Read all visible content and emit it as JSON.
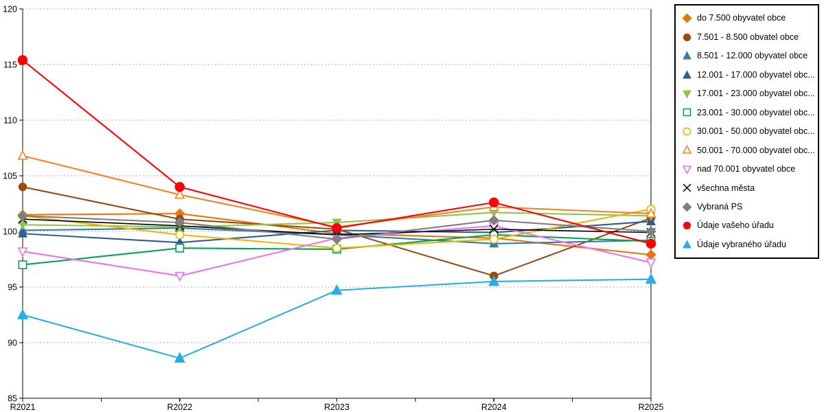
{
  "chart_data": {
    "type": "line",
    "title": "",
    "xlabel": "",
    "ylabel": "",
    "x_categories": [
      "R2021",
      "R2022",
      "R2023",
      "R2024",
      "R2025"
    ],
    "ylim": [
      85,
      120
    ],
    "ytick_step": 5,
    "grid": "horizontal-dashed",
    "grid_color": "#ababab",
    "axis_color": "#000000",
    "legend_position": "right",
    "series": [
      {
        "name": "do 7.500 obyvatel obce",
        "color": "#e8740c",
        "marker": "diamond",
        "fill": "solid",
        "values": [
          101.5,
          101.6,
          99.8,
          99.4,
          97.9
        ]
      },
      {
        "name": "7.501 - 8.500 obvatel obce",
        "color": "#9a4b0f",
        "marker": "circle",
        "fill": "solid",
        "values": [
          104.0,
          101.1,
          100.2,
          96.0,
          101.2
        ]
      },
      {
        "name": "8.501 - 12.000 obyvatel obce",
        "color": "#347ea4",
        "marker": "triangle-up",
        "fill": "solid",
        "values": [
          100.1,
          100.3,
          99.7,
          98.9,
          99.2
        ]
      },
      {
        "name": "12.001 - 17.000 obyvatel obc...",
        "color": "#2c5f8f",
        "marker": "triangle-up",
        "fill": "solid",
        "values": [
          99.8,
          99.0,
          100.1,
          99.9,
          100.9
        ]
      },
      {
        "name": "17.001 - 23.000 obyvatel obc...",
        "color": "#8ec549",
        "marker": "triangle-down",
        "fill": "solid",
        "values": [
          100.6,
          100.4,
          100.8,
          101.7,
          101.4
        ]
      },
      {
        "name": "23.001 - 30.000 obyvatel obc...",
        "color": "#00a550",
        "marker": "square",
        "fill": "hollow",
        "values": [
          97.0,
          98.5,
          98.4,
          99.7,
          99.1
        ]
      },
      {
        "name": "30.001 - 50.000 obyvatel obc...",
        "color": "#f0b400",
        "marker": "circle",
        "fill": "hollow",
        "values": [
          101.4,
          99.7,
          98.5,
          99.3,
          102.0
        ]
      },
      {
        "name": "50.001 - 70.000 obyvatel obc...",
        "color": "#f28322",
        "marker": "triangle-up",
        "fill": "hollow",
        "values": [
          106.8,
          103.3,
          100.4,
          102.2,
          101.6
        ]
      },
      {
        "name": "nad 70.001 obyvatel obce",
        "color": "#f070f0",
        "marker": "triangle-down",
        "fill": "hollow",
        "values": [
          98.2,
          96.0,
          99.4,
          100.5,
          97.2
        ]
      },
      {
        "name": "všechna města",
        "color": "#000000",
        "marker": "x",
        "fill": "line",
        "values": [
          101.1,
          100.5,
          99.7,
          100.2,
          99.9
        ]
      },
      {
        "name": "Vybraná PS",
        "color": "#7f7f7f",
        "marker": "diamond",
        "fill": "solid",
        "values": [
          101.4,
          100.8,
          99.3,
          101.0,
          100.0
        ]
      },
      {
        "name": "Údaje vašeho úřadu",
        "color": "#fe0000",
        "marker": "circle",
        "fill": "solid",
        "values": [
          115.4,
          104.0,
          100.3,
          102.6,
          98.9
        ]
      },
      {
        "name": "Údaje vybraného úřadu",
        "color": "#26aee5",
        "marker": "triangle-up",
        "fill": "solid",
        "values": [
          92.5,
          88.6,
          94.7,
          95.5,
          95.7
        ]
      }
    ]
  }
}
